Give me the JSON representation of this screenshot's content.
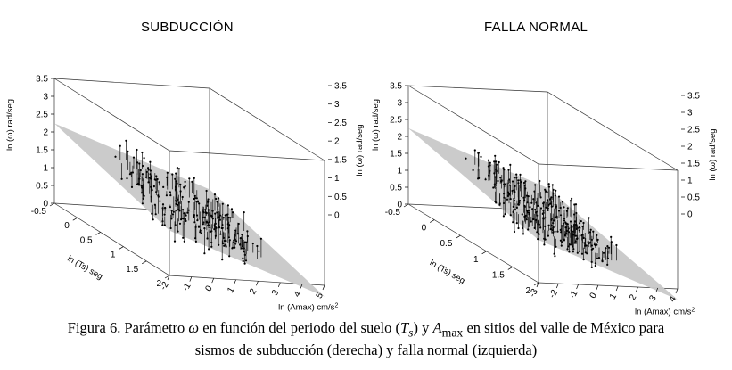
{
  "chart_data": [
    {
      "type": "scatter",
      "title": "SUBDUCCIÓN",
      "xlabel": "ln (Ts) seg",
      "ylabel": "ln (Amax) cm/s2",
      "zlabel": "ln (ω) rad/seg",
      "x_ticks": [
        "-0.5",
        "0",
        "0.5",
        "1",
        "1.5",
        "2"
      ],
      "y_ticks": [
        "-2",
        "-1",
        "0",
        "1",
        "2",
        "3",
        "4",
        "5"
      ],
      "z_ticks": [
        "0",
        "0.5",
        "1",
        "1.5",
        "2",
        "2.5",
        "3",
        "3.5"
      ],
      "xlim": [
        -0.5,
        2
      ],
      "ylim": [
        -2,
        5
      ],
      "zlim": [
        0,
        3.5
      ],
      "surface": "plane",
      "legend": "none",
      "grid": false
    },
    {
      "type": "scatter",
      "title": "FALLA NORMAL",
      "xlabel": "ln (Ts) seg",
      "ylabel": "ln (Amax) cm/s2",
      "zlabel": "ln (ω) rad/seg",
      "x_ticks": [
        "-0.5",
        "0",
        "0.5",
        "1",
        "1.5",
        "2"
      ],
      "y_ticks": [
        "-3",
        "-2",
        "-1",
        "0",
        "1",
        "2",
        "3",
        "4"
      ],
      "z_ticks": [
        "0",
        "0.5",
        "1",
        "1.5",
        "2",
        "2.5",
        "3",
        "3.5"
      ],
      "xlim": [
        -0.5,
        2
      ],
      "ylim": [
        -3,
        4
      ],
      "zlim": [
        0,
        3.5
      ],
      "surface": "plane",
      "legend": "none",
      "grid": false
    }
  ],
  "caption": {
    "line1_prefix": "Figura 6. Parámetro ",
    "omega": "ω",
    "line1_mid": " en función del periodo del suelo (",
    "ts_T": "T",
    "ts_s": "s",
    "line1_mid2": ") y ",
    "amax_A": "A",
    "amax_sub": "max",
    "line1_suffix": " en sitios del valle de México para",
    "line2": "sismos de subducción (derecha) y falla normal (izquierda)"
  }
}
